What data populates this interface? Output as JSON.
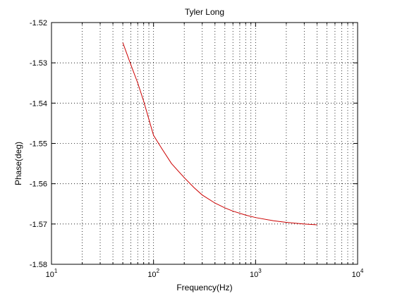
{
  "chart_data": {
    "type": "line",
    "title": "Tyler Long",
    "xlabel": "Frequency(Hz)",
    "ylabel": "Phase(deg)",
    "xscale": "log",
    "xlim": [
      10,
      10000
    ],
    "ylim": [
      -1.58,
      -1.52
    ],
    "grid": true,
    "x_ticks": [
      {
        "value": 10,
        "base": "10",
        "exp": "1"
      },
      {
        "value": 100,
        "base": "10",
        "exp": "2"
      },
      {
        "value": 1000,
        "base": "10",
        "exp": "3"
      },
      {
        "value": 10000,
        "base": "10",
        "exp": "4"
      }
    ],
    "y_ticks": [
      {
        "value": -1.52,
        "label": "-1.52"
      },
      {
        "value": -1.53,
        "label": "-1.53"
      },
      {
        "value": -1.54,
        "label": "-1.54"
      },
      {
        "value": -1.55,
        "label": "-1.55"
      },
      {
        "value": -1.56,
        "label": "-1.56"
      },
      {
        "value": -1.57,
        "label": "-1.57"
      },
      {
        "value": -1.58,
        "label": "-1.58"
      }
    ],
    "series": [
      {
        "color": "#cc0000",
        "x": [
          50,
          60,
          70,
          80,
          90,
          100,
          120,
          150,
          200,
          250,
          300,
          400,
          500,
          600,
          800,
          1000,
          1500,
          2000,
          3000,
          4000
        ],
        "y": [
          -1.525,
          -1.5305,
          -1.535,
          -1.5395,
          -1.544,
          -1.548,
          -1.5512,
          -1.555,
          -1.5585,
          -1.561,
          -1.5628,
          -1.5648,
          -1.566,
          -1.5668,
          -1.5678,
          -1.5684,
          -1.5692,
          -1.5696,
          -1.57,
          -1.5702
        ]
      }
    ]
  }
}
